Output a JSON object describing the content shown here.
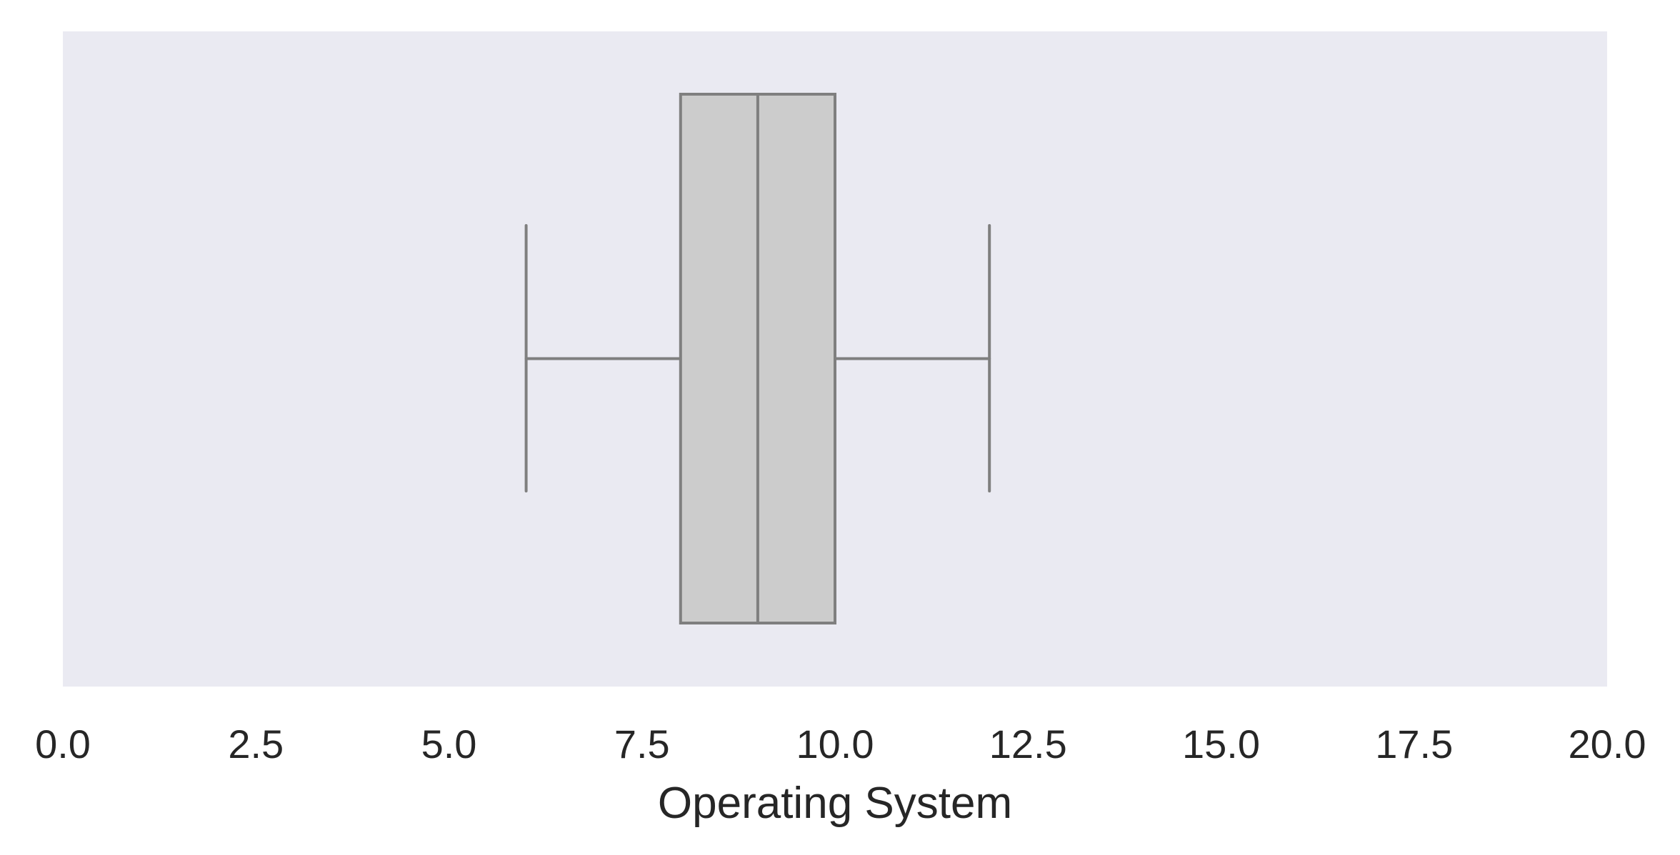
{
  "chart_data": {
    "type": "box",
    "orientation": "horizontal",
    "xlabel": "Operating System",
    "ylabel": "",
    "xlim": [
      0,
      20
    ],
    "xticks": [
      0,
      2.5,
      5,
      7.5,
      10,
      12.5,
      15,
      17.5,
      20
    ],
    "xtick_labels": [
      "0.0",
      "2.5",
      "5.0",
      "7.5",
      "10.0",
      "12.5",
      "15.0",
      "17.5",
      "20.0"
    ],
    "grid": false,
    "box": {
      "whisker_low": 6,
      "q1": 8,
      "median": 9,
      "q3": 10,
      "whisker_high": 12
    },
    "colors": {
      "plot_background": "#eaeaf2",
      "box_fill": "#cccccc",
      "line": "#7f7f7f",
      "text": "#262626"
    }
  }
}
